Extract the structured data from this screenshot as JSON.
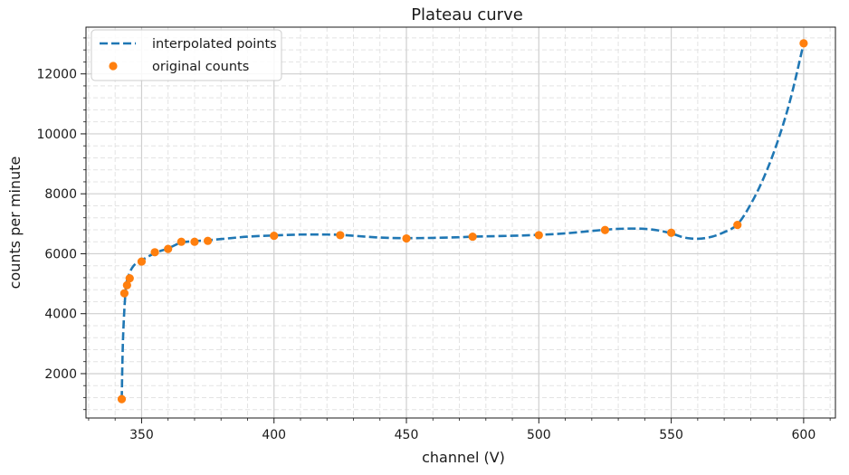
{
  "chart_data": {
    "type": "line",
    "title": "Plateau curve",
    "xlabel": "channel (V)",
    "ylabel": "counts per minute",
    "xlim": [
      329,
      612
    ],
    "ylim": [
      520,
      13560
    ],
    "xticks": [
      350,
      400,
      450,
      500,
      550,
      600
    ],
    "yticks": [
      2000,
      4000,
      6000,
      8000,
      10000,
      12000
    ],
    "xtick_labels": [
      "350",
      "400",
      "450",
      "500",
      "550",
      "600"
    ],
    "ytick_labels": [
      "2000",
      "4000",
      "6000",
      "8000",
      "10000",
      "12000"
    ],
    "grid": "on (major solid, minor dashed)",
    "legend_position": "top-left",
    "series": [
      {
        "name": "interpolated points",
        "style": "dashed-line",
        "color": "#1f77b4",
        "x": [
          342.5,
          343,
          344,
          345,
          347,
          350,
          355,
          360,
          365,
          370,
          375,
          380,
          390,
          400,
          410,
          420,
          425,
          430,
          440,
          450,
          460,
          470,
          475,
          480,
          490,
          500,
          510,
          520,
          525,
          530,
          535,
          540,
          545,
          550,
          555,
          560,
          565,
          570,
          575,
          580,
          585,
          590,
          595,
          600
        ],
        "y": [
          1150,
          3200,
          4800,
          5250,
          5600,
          5780,
          6020,
          6180,
          6370,
          6420,
          6450,
          6490,
          6570,
          6610,
          6640,
          6640,
          6630,
          6600,
          6540,
          6520,
          6530,
          6550,
          6570,
          6580,
          6600,
          6630,
          6680,
          6760,
          6800,
          6830,
          6840,
          6830,
          6780,
          6680,
          6540,
          6500,
          6560,
          6720,
          6980,
          7650,
          8550,
          9700,
          11150,
          13020
        ]
      },
      {
        "name": "original counts",
        "style": "markers",
        "color": "#ff7f0e",
        "x": [
          342.5,
          343.5,
          344.5,
          345.5,
          350,
          355,
          360,
          365,
          370,
          375,
          400,
          425,
          450,
          475,
          500,
          525,
          550,
          575,
          600
        ],
        "y": [
          1150,
          4680,
          4950,
          5180,
          5740,
          6050,
          6160,
          6400,
          6400,
          6430,
          6600,
          6620,
          6510,
          6570,
          6620,
          6790,
          6700,
          6960,
          13020
        ]
      }
    ]
  }
}
